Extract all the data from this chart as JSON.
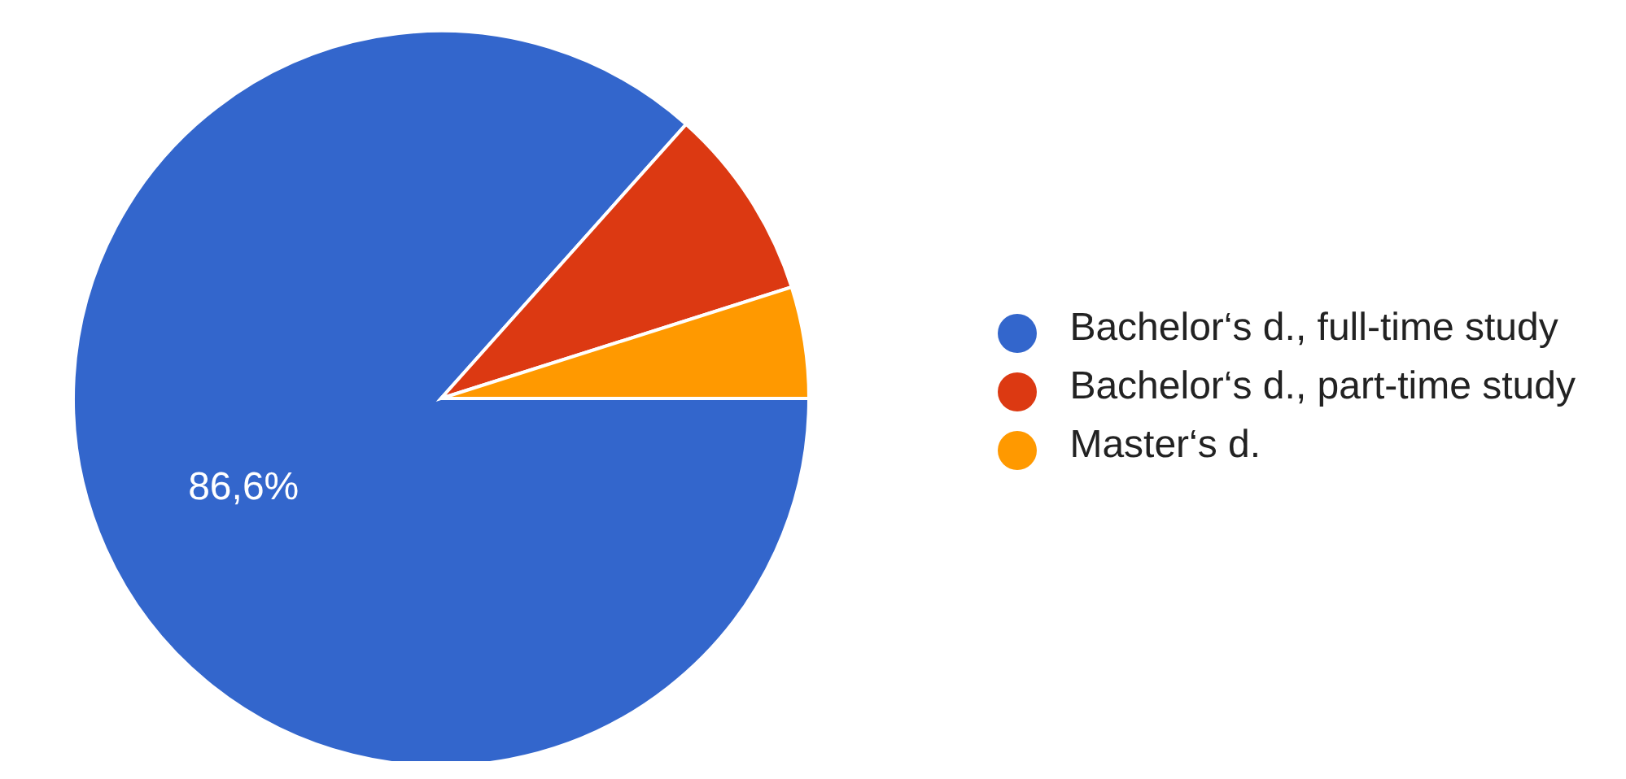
{
  "chart_data": {
    "type": "pie",
    "categories": [
      "Bachelor‘s d., full-time study",
      "Bachelor‘s d., part-time study",
      "Master‘s d."
    ],
    "values": [
      86.6,
      8.5,
      4.9
    ],
    "colors": [
      "#3366cc",
      "#dc3912",
      "#ff9900"
    ],
    "value_labels": [
      "86,6%",
      null,
      null
    ],
    "legend": "right"
  }
}
